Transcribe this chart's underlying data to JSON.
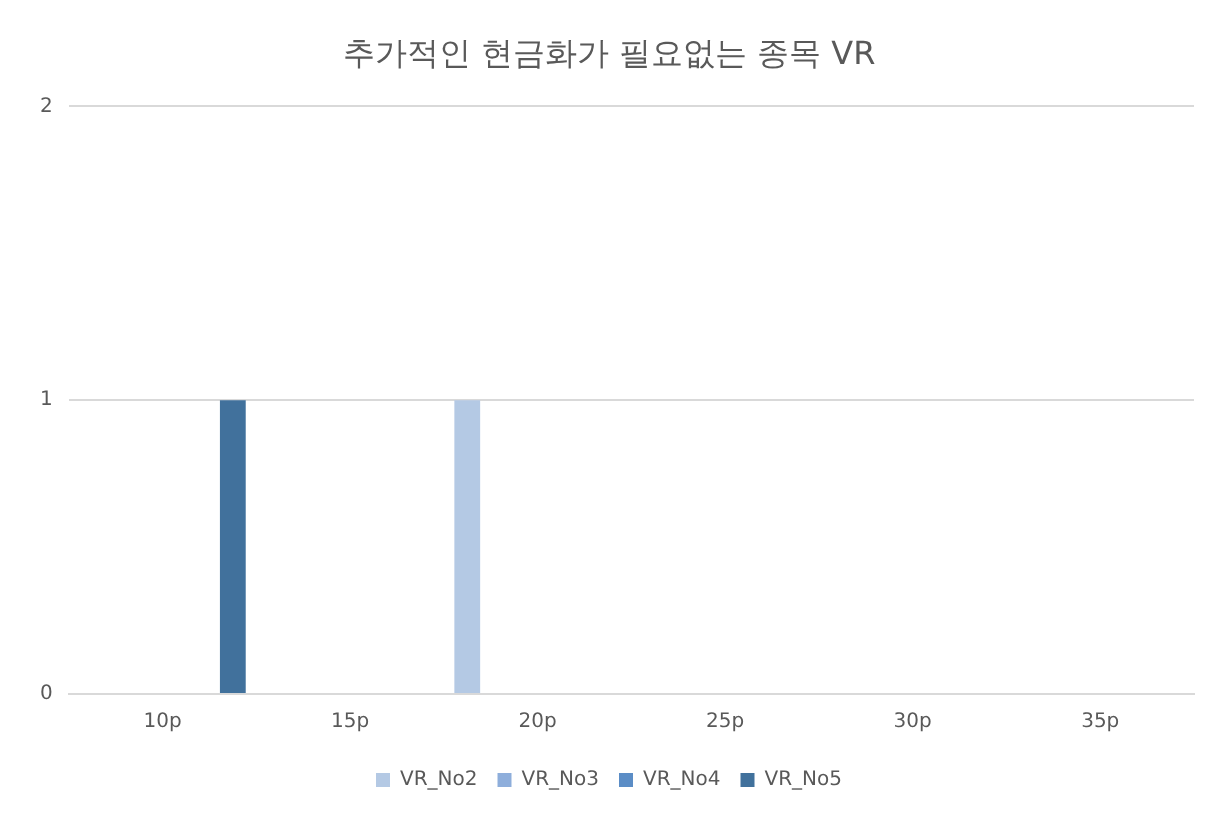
{
  "chart_data": {
    "type": "bar",
    "title": "추가적인 현금화가 필요없는 종목 VR",
    "categories": [
      "10p",
      "15p",
      "20p",
      "25p",
      "30p",
      "35p"
    ],
    "series": [
      {
        "name": "VR_No2",
        "color": "#b4c9e4",
        "values": [
          0,
          0,
          1,
          0,
          0,
          0
        ]
      },
      {
        "name": "VR_No3",
        "color": "#8eaedb",
        "values": [
          0,
          0,
          0,
          0,
          0,
          0
        ]
      },
      {
        "name": "VR_No4",
        "color": "#5b8dc6",
        "values": [
          0,
          0,
          0,
          0,
          0,
          0
        ]
      },
      {
        "name": "VR_No5",
        "color": "#41719c",
        "values": [
          1,
          0,
          0,
          0,
          0,
          0
        ]
      }
    ],
    "ylim": [
      0,
      2
    ],
    "yticks": [
      0,
      1,
      2
    ],
    "grid": "y",
    "legend": "bottom"
  }
}
